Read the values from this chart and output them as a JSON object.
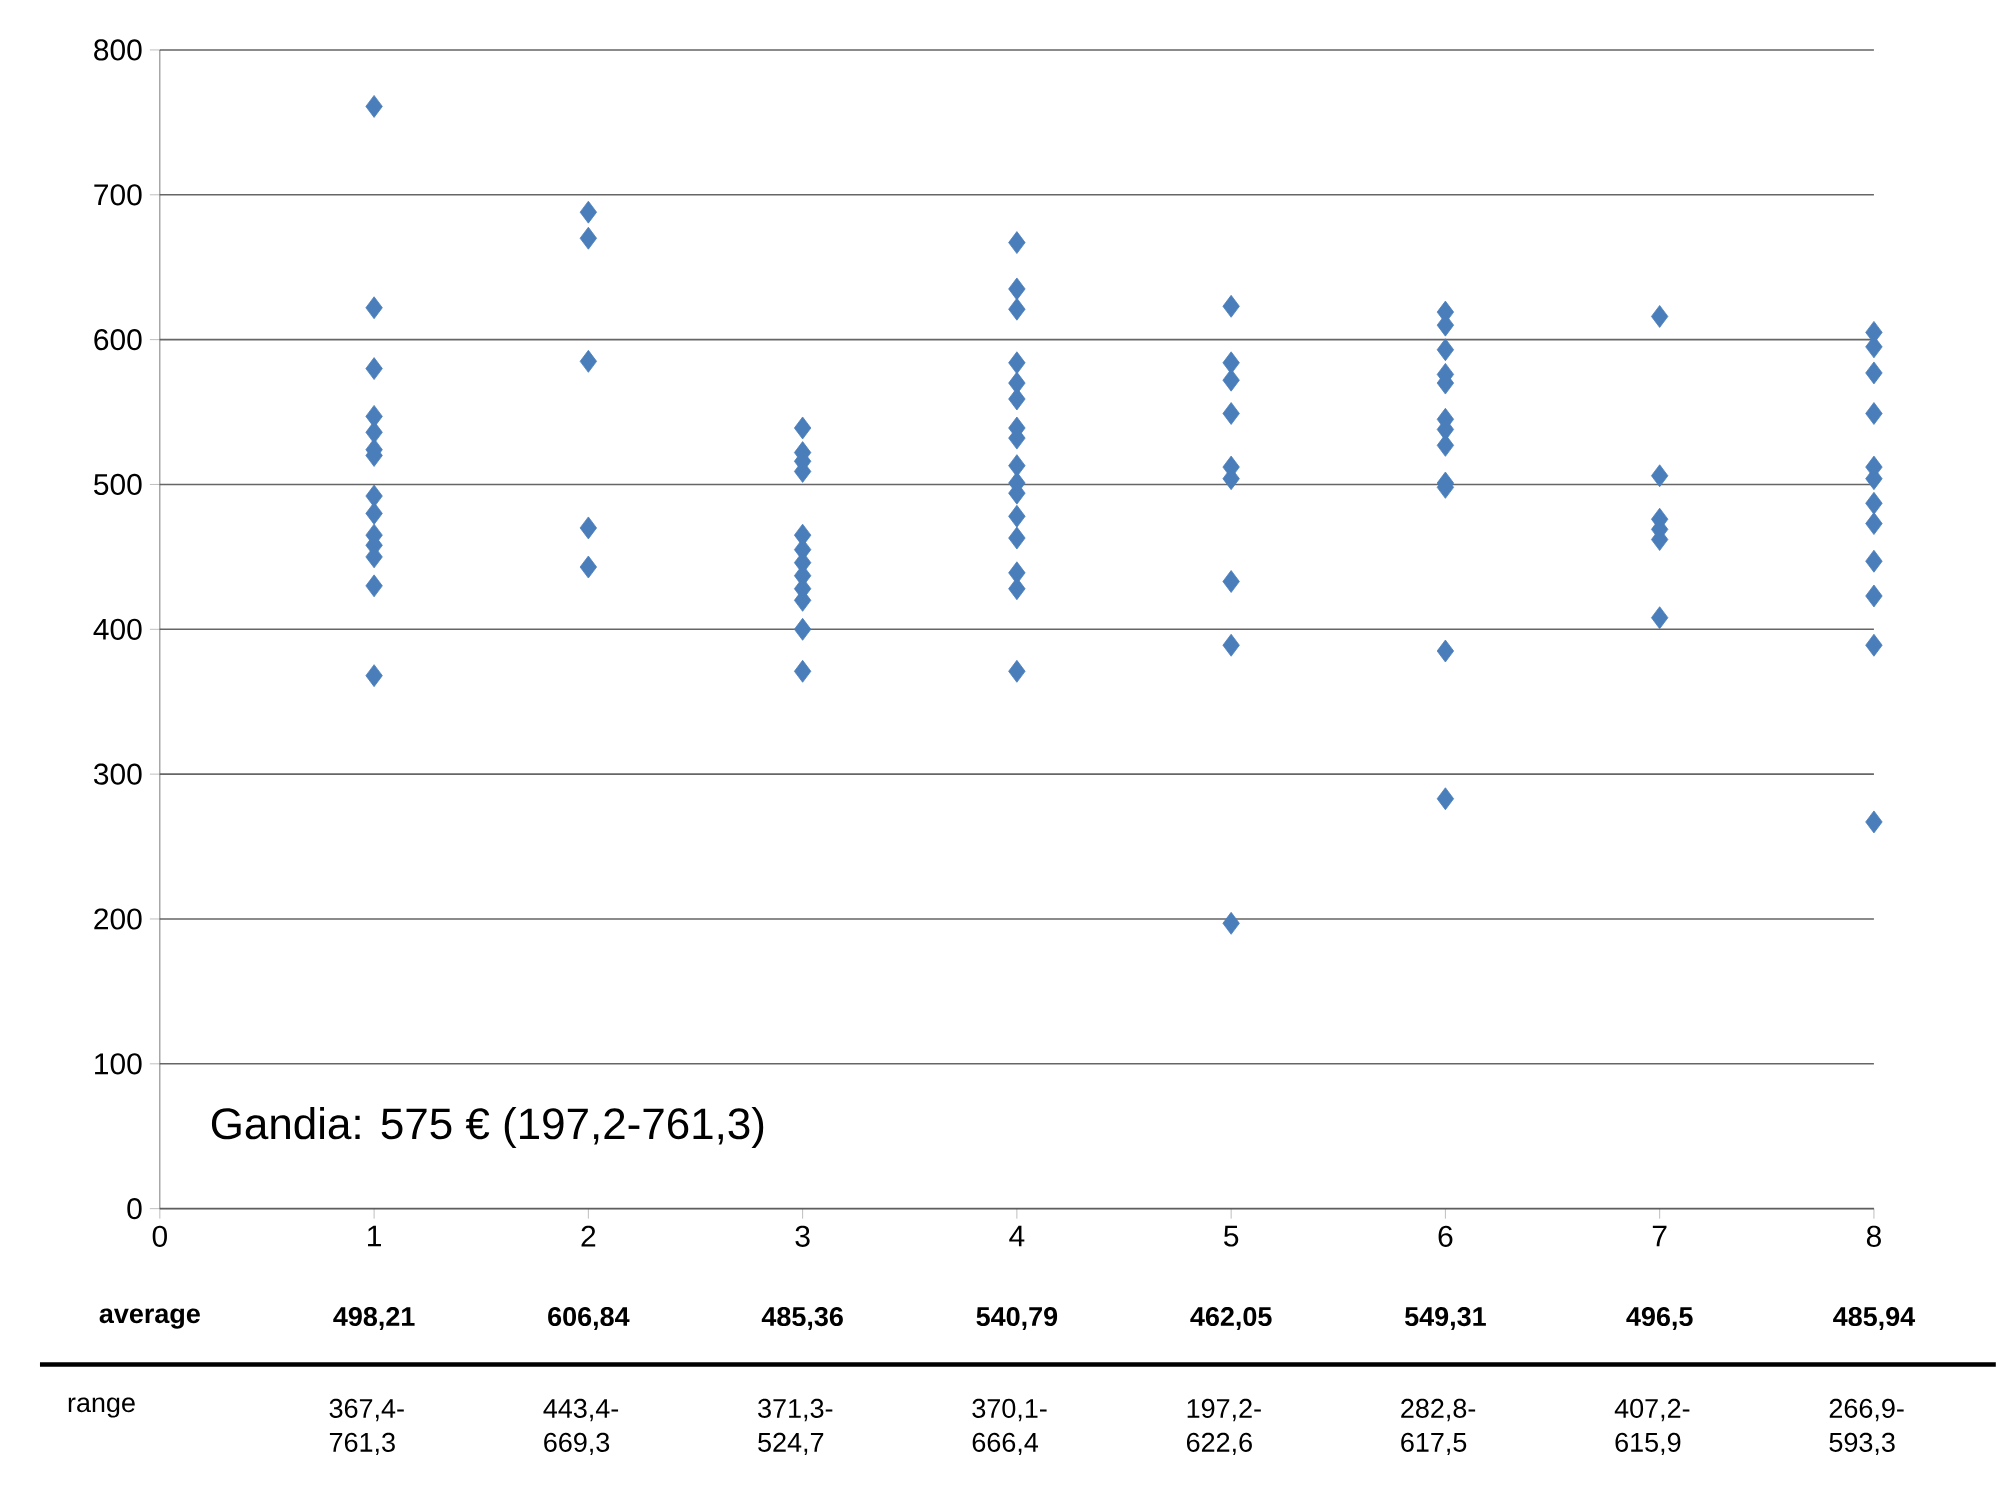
{
  "chart_data": {
    "type": "scatter",
    "color": "#4a7ebb",
    "marker": "diamond",
    "grid": "y",
    "x": [
      1,
      1,
      1,
      1,
      1,
      1,
      1,
      1,
      1,
      1,
      1,
      1,
      1,
      1,
      2,
      2,
      2,
      2,
      2,
      3,
      3,
      3,
      3,
      3,
      3,
      3,
      3,
      3,
      3,
      3,
      3,
      4,
      4,
      4,
      4,
      4,
      4,
      4,
      4,
      4,
      4,
      4,
      4,
      4,
      4,
      4,
      4,
      5,
      5,
      5,
      5,
      5,
      5,
      5,
      5,
      5,
      6,
      6,
      6,
      6,
      6,
      6,
      6,
      6,
      6,
      6,
      6,
      6,
      7,
      7,
      7,
      7,
      7,
      7,
      8,
      8,
      8,
      8,
      8,
      8,
      8,
      8,
      8,
      8,
      8,
      8
    ],
    "values": [
      761,
      622,
      580,
      547,
      536,
      524,
      520,
      492,
      480,
      465,
      458,
      450,
      430,
      368,
      688,
      670,
      585,
      470,
      443,
      539,
      522,
      516,
      509,
      465,
      455,
      446,
      437,
      428,
      420,
      400,
      371,
      667,
      635,
      621,
      584,
      570,
      559,
      539,
      532,
      513,
      501,
      494,
      478,
      463,
      439,
      428,
      371,
      623,
      584,
      572,
      549,
      512,
      504,
      433,
      389,
      197,
      619,
      610,
      593,
      576,
      570,
      545,
      538,
      527,
      501,
      498,
      385,
      283,
      616,
      506,
      476,
      469,
      462,
      408,
      605,
      595,
      577,
      549,
      512,
      504,
      487,
      473,
      447,
      423,
      389,
      267
    ],
    "xlim": [
      0,
      8
    ],
    "xticks": [
      0,
      1,
      2,
      3,
      4,
      5,
      6,
      7,
      8
    ],
    "ylim": [
      0,
      800
    ],
    "yticks": [
      0,
      100,
      200,
      300,
      400,
      500,
      600,
      700,
      800
    ],
    "annotations": [
      "Gandia: 575 € (197,2-761,3)",
      "average",
      "498,21",
      "606,84",
      "485,36",
      "540,79",
      "462,05",
      "549,31",
      "496,5",
      "485,94",
      "range",
      "367,4-761,3",
      "443,4-669,3",
      "371,3-524,7",
      "370,1-666,4",
      "197,2-622,6",
      "282,8-617,5",
      "407,2-615,9",
      "266,9-593,3"
    ]
  }
}
